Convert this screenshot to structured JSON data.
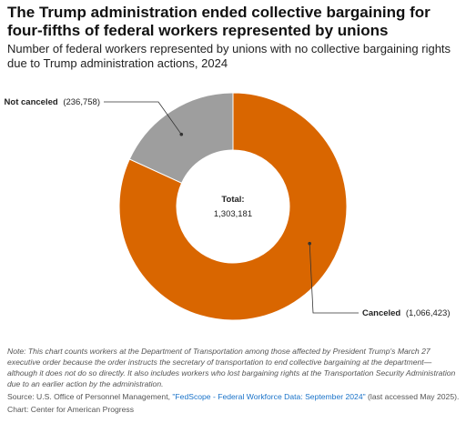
{
  "header": {
    "title": "The Trump administration ended collective bargaining for four-fifths of federal workers represented by unions",
    "subtitle": "Number of federal workers represented by unions with no collective bargaining rights due to Trump administration actions, 2024"
  },
  "chart_data": {
    "type": "pie",
    "donut": true,
    "slices": [
      {
        "label": "Canceled",
        "value": 1066423,
        "display": "(1,066,423)",
        "color": "#d96600"
      },
      {
        "label": "Not canceled",
        "value": 236758,
        "display": "(236,758)",
        "color": "#9e9e9e"
      }
    ],
    "center": {
      "label": "Total:",
      "value": "1,303,181"
    }
  },
  "footer": {
    "note": "Note: This chart counts workers at the Department of Transportation among those affected by President Trump's March 27 executive order because the order instructs the secretary of transportation to end collective bargaining at the department—although it does not do so directly. It also includes workers who lost bargaining rights at the Transportation Security Administration due to an earlier action by the administration.",
    "source_prefix": "Source: U.S. Office of Personnel Management, ",
    "source_link": "\"FedScope - Federal Workforce Data: September 2024\"",
    "source_suffix": " (last accessed May 2025).",
    "credit": "Chart: Center for American Progress"
  }
}
